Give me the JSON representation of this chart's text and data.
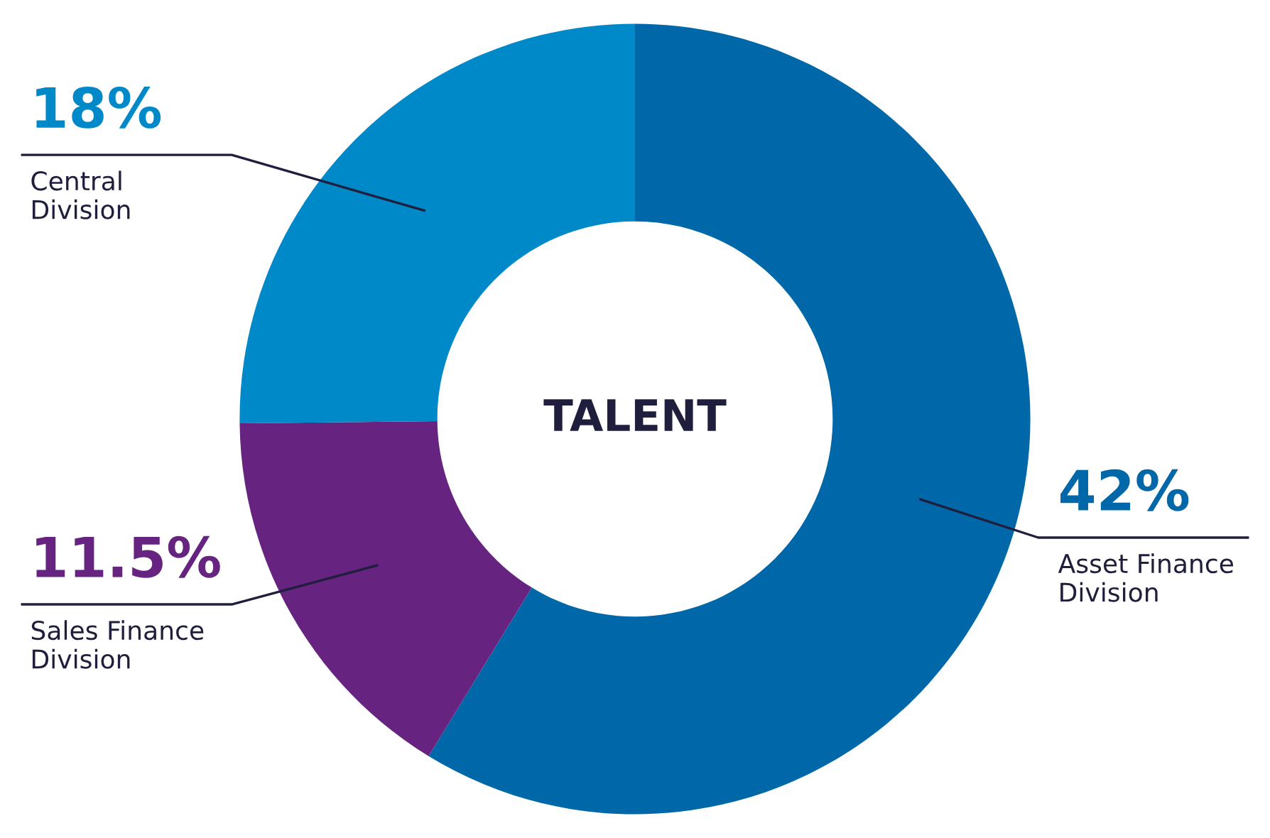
{
  "chart_data": {
    "type": "donut",
    "title": "TALENT",
    "categories": [
      "Asset Finance\nDivision",
      "Sales Finance\nDivision",
      "Central\nDivision"
    ],
    "values": [
      42,
      11.5,
      18
    ],
    "colors": [
      "#0068a8",
      "#662380",
      "#0089c8"
    ],
    "value_labels": [
      "42%",
      "11.5%",
      "18%"
    ],
    "legend": false
  }
}
